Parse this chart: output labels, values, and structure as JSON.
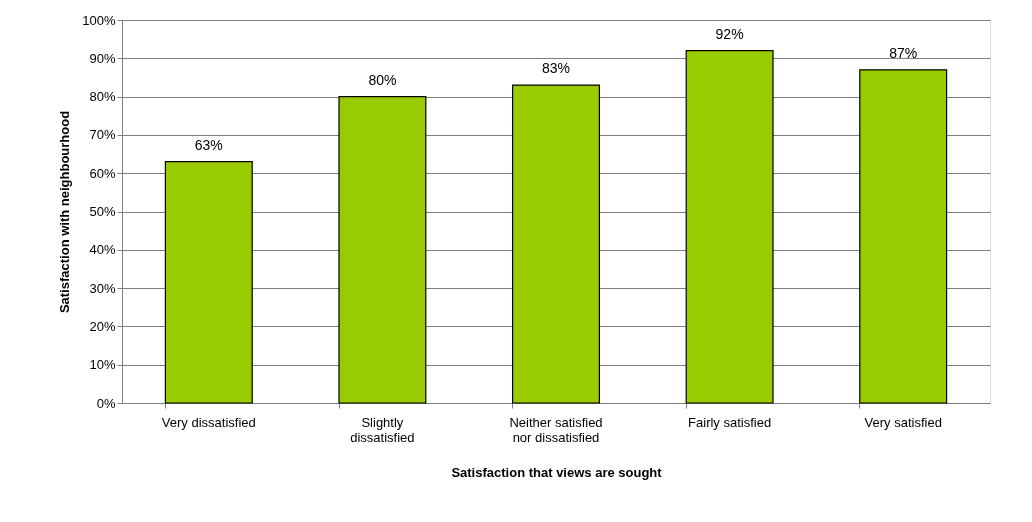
{
  "chart_data": {
    "type": "bar",
    "xlabel": "Satisfaction that views are sought",
    "ylabel": "Satisfaction with neighbourhood",
    "categories": [
      "Very dissatisfied",
      "Slightly\ndissatisfied",
      "Neither satisfied\nnor dissatisfied",
      "Fairly satisfied",
      "Very satisfied"
    ],
    "values": [
      63,
      80,
      83,
      92,
      87
    ],
    "value_labels": [
      "63%",
      "80%",
      "83%",
      "92%",
      "87%"
    ],
    "color": "#99cc00",
    "ylim": [
      0,
      100
    ],
    "yticks": [
      {
        "value": 0,
        "label": "0%"
      },
      {
        "value": 10,
        "label": "10%"
      },
      {
        "value": 20,
        "label": "20%"
      },
      {
        "value": 30,
        "label": "30%"
      },
      {
        "value": 40,
        "label": "40%"
      },
      {
        "value": 50,
        "label": "50%"
      },
      {
        "value": 60,
        "label": "60%"
      },
      {
        "value": 70,
        "label": "70%"
      },
      {
        "value": 80,
        "label": "80%"
      },
      {
        "value": 90,
        "label": "90%"
      },
      {
        "value": 100,
        "label": "100%"
      }
    ],
    "grid": "y"
  }
}
